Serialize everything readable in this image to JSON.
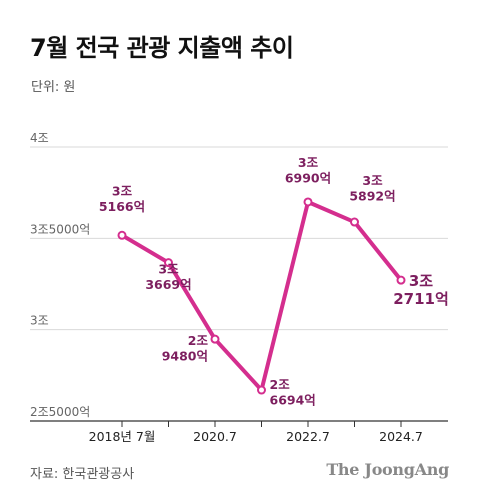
{
  "chart_data": {
    "type": "line",
    "title": "7월 전국 관광 지출액 추이",
    "unit_note": "단위: 원",
    "y_ticks": [
      {
        "value": 40000,
        "label": "4조"
      },
      {
        "value": 35000,
        "label": "3조5000억"
      },
      {
        "value": 30000,
        "label": "3조"
      },
      {
        "value": 25000,
        "label": "2조5000억"
      }
    ],
    "ylim": [
      25000,
      40000
    ],
    "y_unit": "억원",
    "x_tick_labels": [
      "2018년 7월",
      "2020.7",
      "2022.7",
      "2024.7"
    ],
    "series": [
      {
        "color": "#d42e8e",
        "points": [
          {
            "x": "2018.7",
            "y": 35166,
            "label_line1": "3조",
            "label_line2": "5166억"
          },
          {
            "x": "2019.7",
            "y": 33669,
            "label_line1": "3조",
            "label_line2": "3669억"
          },
          {
            "x": "2020.7",
            "y": 29480,
            "label_line1": "2조",
            "label_line2": "9480억"
          },
          {
            "x": "2021.7",
            "y": 26694,
            "label_line1": "2조",
            "label_line2": "6694억"
          },
          {
            "x": "2022.7",
            "y": 36990,
            "label_line1": "3조",
            "label_line2": "6990억"
          },
          {
            "x": "2023.7",
            "y": 35892,
            "label_line1": "3조",
            "label_line2": "5892억"
          },
          {
            "x": "2024.7",
            "y": 32711,
            "label_line1": "3조",
            "label_line2": "2711억"
          }
        ]
      }
    ],
    "grid": true
  },
  "footer": {
    "source": "자료: 한국관광공사",
    "brand": "The JoongAng"
  }
}
